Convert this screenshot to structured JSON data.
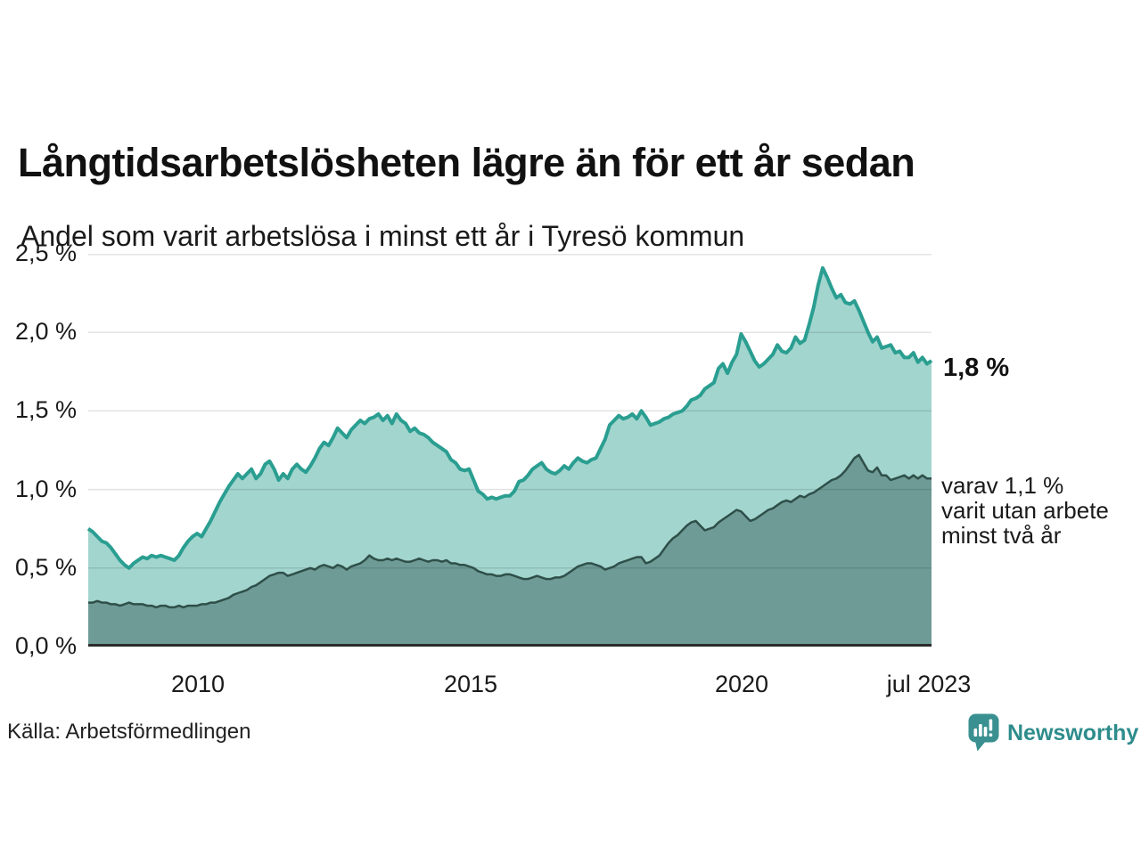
{
  "title": "Långtidsarbetslösheten lägre än för ett år sedan",
  "subtitle": "Andel som varit arbetslösa i minst ett år i Tyresö kommun",
  "footer": {
    "source": "Källa: Arbetsförmedlingen",
    "brand": "Newsworthy",
    "brand_color": "#2e8c8c"
  },
  "chart_data": {
    "type": "area",
    "title": "Långtidsarbetslösheten lägre än för ett år sedan",
    "subtitle": "Andel som varit arbetslösa i minst ett år i Tyresö kommun",
    "unit": "%",
    "frequency": "monthly",
    "x_start": "2008-01",
    "x_end": "2023-07",
    "x_tick_labels": [
      "2010",
      "2015",
      "2020",
      "jul 2023"
    ],
    "y_tick_labels": [
      "2,5 %",
      "2,0 %",
      "1,5 %",
      "1,0 %",
      "0,5 %",
      "0,0 %"
    ],
    "ylim": [
      0,
      2.5
    ],
    "grid": "horizontal",
    "gridline_color": "rgba(0,0,0,0.11)",
    "axis_line_color": "#2b2b2b",
    "legend": "none",
    "series": [
      {
        "id": "minst-ett-ar",
        "name": "Andel arbetslösa minst ett år",
        "end_label": "1,8 %",
        "latest_value": 1.8,
        "fill": "#a2d5ce",
        "stroke": "#2a9e91",
        "values": [
          0.75,
          0.73,
          0.7,
          0.67,
          0.66,
          0.63,
          0.59,
          0.55,
          0.52,
          0.5,
          0.53,
          0.55,
          0.57,
          0.56,
          0.58,
          0.57,
          0.58,
          0.57,
          0.56,
          0.55,
          0.58,
          0.63,
          0.67,
          0.7,
          0.72,
          0.7,
          0.75,
          0.8,
          0.86,
          0.92,
          0.97,
          1.02,
          1.06,
          1.1,
          1.07,
          1.1,
          1.13,
          1.07,
          1.1,
          1.16,
          1.18,
          1.13,
          1.06,
          1.1,
          1.07,
          1.13,
          1.16,
          1.13,
          1.11,
          1.15,
          1.2,
          1.26,
          1.3,
          1.28,
          1.33,
          1.39,
          1.36,
          1.33,
          1.38,
          1.41,
          1.44,
          1.42,
          1.45,
          1.46,
          1.48,
          1.44,
          1.47,
          1.42,
          1.48,
          1.44,
          1.42,
          1.37,
          1.39,
          1.36,
          1.35,
          1.33,
          1.3,
          1.28,
          1.26,
          1.24,
          1.19,
          1.17,
          1.13,
          1.12,
          1.13,
          1.06,
          0.99,
          0.97,
          0.94,
          0.95,
          0.94,
          0.95,
          0.96,
          0.96,
          0.99,
          1.05,
          1.06,
          1.09,
          1.13,
          1.15,
          1.17,
          1.13,
          1.11,
          1.1,
          1.12,
          1.15,
          1.13,
          1.17,
          1.2,
          1.18,
          1.17,
          1.19,
          1.2,
          1.26,
          1.32,
          1.41,
          1.44,
          1.47,
          1.45,
          1.46,
          1.48,
          1.45,
          1.5,
          1.46,
          1.41,
          1.42,
          1.43,
          1.45,
          1.46,
          1.48,
          1.49,
          1.5,
          1.53,
          1.57,
          1.58,
          1.6,
          1.64,
          1.66,
          1.68,
          1.77,
          1.8,
          1.74,
          1.81,
          1.86,
          1.99,
          1.94,
          1.88,
          1.82,
          1.78,
          1.8,
          1.83,
          1.86,
          1.92,
          1.88,
          1.87,
          1.9,
          1.97,
          1.93,
          1.95,
          2.05,
          2.16,
          2.3,
          2.41,
          2.35,
          2.28,
          2.22,
          2.24,
          2.19,
          2.18,
          2.2,
          2.14,
          2.07,
          2.0,
          1.94,
          1.97,
          1.9,
          1.91,
          1.92,
          1.87,
          1.88,
          1.84,
          1.84,
          1.87,
          1.81,
          1.84,
          1.8,
          1.82
        ]
      },
      {
        "id": "minst-tva-ar",
        "name": "Varav utan arbete minst två år",
        "end_label_lines": [
          "varav 1,1 %",
          "varit utan arbete",
          "minst två år"
        ],
        "latest_value": 1.1,
        "fill": "#6e9b96",
        "stroke": "#2f4f49",
        "values": [
          0.28,
          0.28,
          0.29,
          0.28,
          0.28,
          0.27,
          0.27,
          0.26,
          0.27,
          0.28,
          0.27,
          0.27,
          0.27,
          0.26,
          0.26,
          0.25,
          0.26,
          0.26,
          0.25,
          0.25,
          0.26,
          0.25,
          0.26,
          0.26,
          0.26,
          0.27,
          0.27,
          0.28,
          0.28,
          0.29,
          0.3,
          0.31,
          0.33,
          0.34,
          0.35,
          0.36,
          0.38,
          0.39,
          0.41,
          0.43,
          0.45,
          0.46,
          0.47,
          0.47,
          0.45,
          0.46,
          0.47,
          0.48,
          0.49,
          0.5,
          0.49,
          0.51,
          0.52,
          0.51,
          0.5,
          0.52,
          0.51,
          0.49,
          0.51,
          0.52,
          0.53,
          0.55,
          0.58,
          0.56,
          0.55,
          0.55,
          0.56,
          0.55,
          0.56,
          0.55,
          0.54,
          0.54,
          0.55,
          0.56,
          0.55,
          0.54,
          0.55,
          0.55,
          0.54,
          0.55,
          0.53,
          0.53,
          0.52,
          0.52,
          0.51,
          0.5,
          0.48,
          0.47,
          0.46,
          0.46,
          0.45,
          0.45,
          0.46,
          0.46,
          0.45,
          0.44,
          0.43,
          0.43,
          0.44,
          0.45,
          0.44,
          0.43,
          0.43,
          0.44,
          0.44,
          0.45,
          0.47,
          0.49,
          0.51,
          0.52,
          0.53,
          0.53,
          0.52,
          0.51,
          0.49,
          0.5,
          0.51,
          0.53,
          0.54,
          0.55,
          0.56,
          0.57,
          0.57,
          0.53,
          0.54,
          0.56,
          0.58,
          0.62,
          0.66,
          0.69,
          0.71,
          0.74,
          0.77,
          0.79,
          0.8,
          0.77,
          0.74,
          0.75,
          0.76,
          0.79,
          0.81,
          0.83,
          0.85,
          0.87,
          0.86,
          0.83,
          0.8,
          0.81,
          0.83,
          0.85,
          0.87,
          0.88,
          0.9,
          0.92,
          0.93,
          0.92,
          0.94,
          0.96,
          0.95,
          0.97,
          0.98,
          1.0,
          1.02,
          1.04,
          1.06,
          1.07,
          1.09,
          1.12,
          1.16,
          1.2,
          1.22,
          1.17,
          1.12,
          1.11,
          1.14,
          1.09,
          1.09,
          1.06,
          1.07,
          1.08,
          1.09,
          1.07,
          1.09,
          1.07,
          1.09,
          1.07,
          1.07
        ]
      }
    ]
  }
}
